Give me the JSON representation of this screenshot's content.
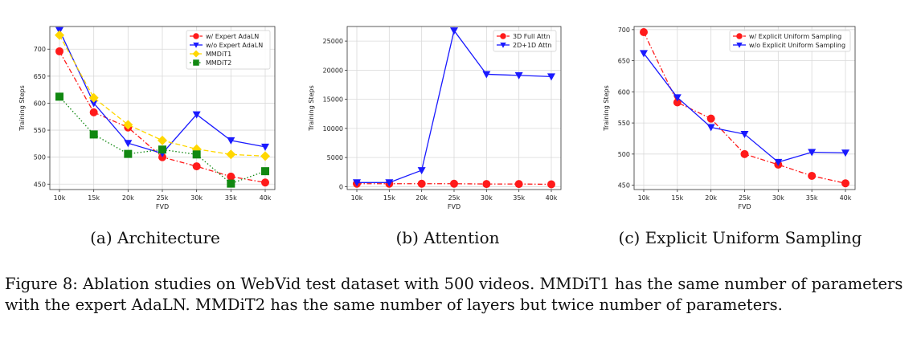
{
  "chart_data": [
    {
      "type": "line",
      "subcaption": "(a) Architecture",
      "title": "",
      "xlabel": "FVD",
      "ylabel": "Training Steps",
      "x": [
        "10k",
        "15k",
        "20k",
        "25k",
        "30k",
        "35k",
        "40k"
      ],
      "ylim": [
        440,
        742
      ],
      "yticks": [
        450,
        500,
        550,
        600,
        650,
        700
      ],
      "grid": true,
      "legend": "top-right",
      "series": [
        {
          "name": "w/ Expert AdaLN",
          "values": [
            696,
            583,
            555,
            500,
            483,
            464,
            453
          ],
          "color": "#ff1a1a",
          "marker": "circle",
          "dash": "dashdot"
        },
        {
          "name": "w/o Expert AdaLN",
          "values": [
            735,
            600,
            526,
            507,
            579,
            531,
            519
          ],
          "color": "#1a1aff",
          "marker": "triangle-down",
          "dash": "solid"
        },
        {
          "name": "MMDiT1",
          "values": [
            726,
            610,
            560,
            531,
            515,
            505,
            502
          ],
          "color": "#ffd700",
          "marker": "diamond",
          "dash": "dashed"
        },
        {
          "name": "MMDiT2",
          "values": [
            612,
            542,
            506,
            514,
            505,
            451,
            474
          ],
          "color": "#118811",
          "marker": "square",
          "dash": "dotted"
        }
      ]
    },
    {
      "type": "line",
      "subcaption": "(b) Attention",
      "title": "",
      "xlabel": "FVD",
      "ylabel": "Training Steps",
      "x": [
        "10k",
        "15k",
        "20k",
        "25k",
        "30k",
        "35k",
        "40k"
      ],
      "ylim": [
        -500,
        27500
      ],
      "yticks": [
        0,
        5000,
        10000,
        15000,
        20000,
        25000
      ],
      "grid": true,
      "legend": "top-right",
      "series": [
        {
          "name": "3D Full Attn",
          "values": [
            500,
            500,
            500,
            500,
            450,
            450,
            400
          ],
          "color": "#ff1a1a",
          "marker": "circle",
          "dash": "dashdot"
        },
        {
          "name": "2D+1D Attn",
          "values": [
            700,
            700,
            2800,
            26800,
            19300,
            19100,
            18900
          ],
          "color": "#1a1aff",
          "marker": "triangle-down",
          "dash": "solid"
        }
      ]
    },
    {
      "type": "line",
      "subcaption": "(c) Explicit Uniform Sampling",
      "title": "",
      "xlabel": "FVD",
      "ylabel": "Training Steps",
      "x": [
        "10k",
        "15k",
        "20k",
        "25k",
        "30k",
        "35k",
        "40k"
      ],
      "ylim": [
        443,
        705
      ],
      "yticks": [
        450,
        500,
        550,
        600,
        650,
        700
      ],
      "grid": true,
      "legend": "top-right",
      "series": [
        {
          "name": "w/ Explicit Uniform Sampling",
          "values": [
            696,
            583,
            557,
            500,
            483,
            465,
            453
          ],
          "color": "#ff1a1a",
          "marker": "circle",
          "dash": "dashdot"
        },
        {
          "name": "w/o Explicit Uniform Sampling",
          "values": [
            662,
            591,
            543,
            532,
            487,
            503,
            502
          ],
          "color": "#1a1aff",
          "marker": "triangle-down",
          "dash": "solid"
        }
      ]
    }
  ],
  "caption": "Figure 8: Ablation studies on WebVid test dataset with 500 videos. MMDiT1 has the same number of parameters with the expert AdaLN. MMDiT2 has the same number of layers but twice number of parameters."
}
